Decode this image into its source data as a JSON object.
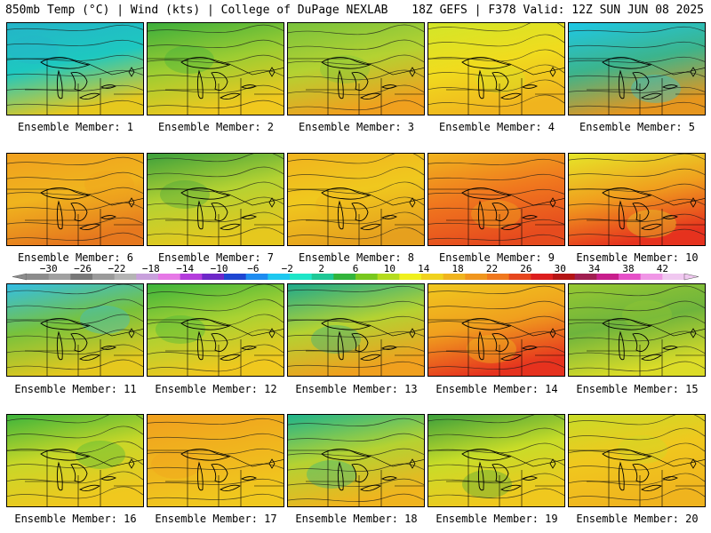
{
  "header": {
    "left": "850mb Temp (°C) | Wind (kts) | College of DuPage NEXLAB",
    "right": "18Z GEFS | F378 Valid: 12Z SUN JUN 08 2025"
  },
  "member_prefix": "Ensemble Member: ",
  "members": [
    {
      "label": "Ensemble Member: 1",
      "tint": "#1ec8c0",
      "north": "#24b4c8",
      "south": "#e6c81e"
    },
    {
      "label": "Ensemble Member: 2",
      "tint": "#9ccd32",
      "north": "#3cae3c",
      "south": "#f0c81e"
    },
    {
      "label": "Ensemble Member: 3",
      "tint": "#b4d232",
      "north": "#78c23c",
      "south": "#f0a01e"
    },
    {
      "label": "Ensemble Member: 4",
      "tint": "#f0dc1e",
      "north": "#d2e628",
      "south": "#f0b41e"
    },
    {
      "label": "Ensemble Member: 5",
      "tint": "#3cb48c",
      "north": "#1ec8e6",
      "south": "#e6961e"
    },
    {
      "label": "Ensemble Member: 6",
      "tint": "#f0b41e",
      "north": "#f0a01e",
      "south": "#e6781e"
    },
    {
      "label": "Ensemble Member: 7",
      "tint": "#b4d232",
      "north": "#3ca03c",
      "south": "#e6c81e"
    },
    {
      "label": "Ensemble Member: 8",
      "tint": "#f0c81e",
      "north": "#f0b41e",
      "south": "#e6a01e"
    },
    {
      "label": "Ensemble Member: 9",
      "tint": "#f0781e",
      "north": "#f0b41e",
      "south": "#e64b1e"
    },
    {
      "label": "Ensemble Member: 10",
      "tint": "#f0a01e",
      "north": "#e6e628",
      "south": "#e6321e"
    },
    {
      "label": "Ensemble Member: 11",
      "tint": "#78c23c",
      "north": "#32bee6",
      "south": "#e6c81e"
    },
    {
      "label": "Ensemble Member: 12",
      "tint": "#aad232",
      "north": "#3cb43c",
      "south": "#f0c81e"
    },
    {
      "label": "Ensemble Member: 13",
      "tint": "#b4d232",
      "north": "#1eaa8c",
      "south": "#f0a01e"
    },
    {
      "label": "Ensemble Member: 14",
      "tint": "#f0a01e",
      "north": "#f0c81e",
      "south": "#e6321e"
    },
    {
      "label": "Ensemble Member: 15",
      "tint": "#6eb43c",
      "north": "#96c832",
      "south": "#dcdc28"
    },
    {
      "label": "Ensemble Member: 16",
      "tint": "#c8d728",
      "north": "#3cb43c",
      "south": "#f0c81e"
    },
    {
      "label": "Ensemble Member: 17",
      "tint": "#f0b41e",
      "north": "#f0a01e",
      "south": "#f0c81e"
    },
    {
      "label": "Ensemble Member: 18",
      "tint": "#b4d232",
      "north": "#1eb48c",
      "south": "#f0b41e"
    },
    {
      "label": "Ensemble Member: 19",
      "tint": "#c8dc28",
      "north": "#3ca03c",
      "south": "#f0c81e"
    },
    {
      "label": "Ensemble Member: 20",
      "tint": "#f0c81e",
      "north": "#c8dc28",
      "south": "#f0b41e"
    }
  ],
  "colorbar": {
    "ticks": [
      "−30",
      "−26",
      "−22",
      "−18",
      "−14",
      "−10",
      "−6",
      "−2",
      "2",
      "6",
      "10",
      "14",
      "18",
      "22",
      "26",
      "30",
      "34",
      "38",
      "42"
    ],
    "colors": [
      "#8c8c8c",
      "#a0a0a0",
      "#787878",
      "#9a9a9a",
      "#b4b4b4",
      "#c8a0dc",
      "#e678e6",
      "#b43cdc",
      "#6e28c8",
      "#1e46d2",
      "#1e8cf0",
      "#1ec8f0",
      "#1ee6c8",
      "#1ec896",
      "#32b43c",
      "#78c81e",
      "#b4dc1e",
      "#f0f01e",
      "#f0d21e",
      "#f0b41e",
      "#f0961e",
      "#f0781e",
      "#e6461e",
      "#dc1e1e",
      "#b41414",
      "#a01e50",
      "#c81e8c",
      "#e650c8",
      "#f096e6",
      "#f0c8f0"
    ]
  }
}
